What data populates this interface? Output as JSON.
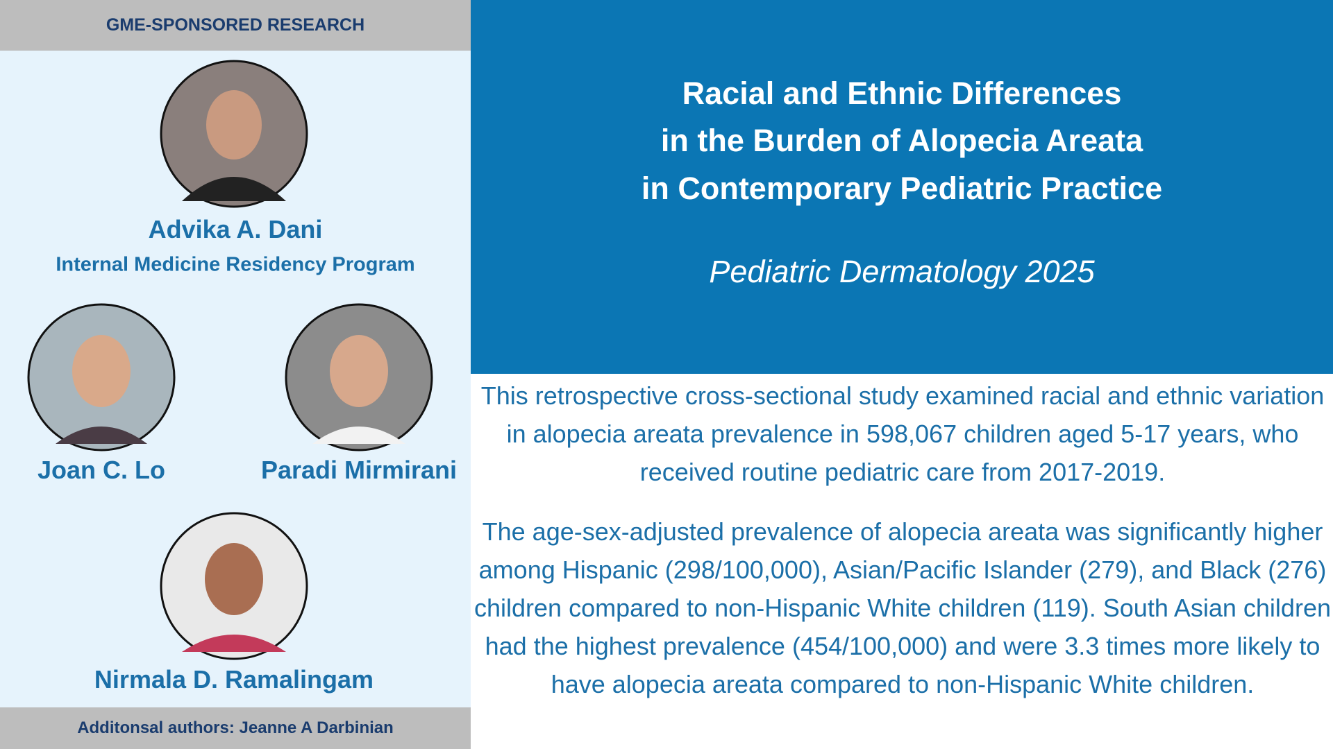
{
  "header": {
    "label": "GME-SPONSORED RESEARCH"
  },
  "authors": [
    {
      "name": "Advika A. Dani",
      "program": "Internal Medicine Residency Program"
    },
    {
      "name": "Joan C. Lo"
    },
    {
      "name": "Paradi Mirmirani"
    },
    {
      "name": "Nirmala D. Ramalingam"
    }
  ],
  "footer": {
    "text": "Additonsal authors: Jeanne A Darbinian"
  },
  "article": {
    "title_lines": [
      "Racial and Ethnic Differences",
      "in the Burden of Alopecia Areata",
      "in Contemporary Pediatric Practice"
    ],
    "journal": "Pediatric Dermatology 2025"
  },
  "summary": {
    "paragraphs": [
      "This retrospective cross-sectional study examined racial and ethnic variation in alopecia areata prevalence in 598,067 children aged 5-17 years, who received routine pediatric care from 2017-2019.",
      "The age-sex-adjusted prevalence of alopecia areata was significantly higher among Hispanic (298/100,000), Asian/Pacific Islander (279), and Black (276) children compared to non-Hispanic White children (119). South Asian children had the highest prevalence (454/100,000) and were 3.3 times more likely to have alopecia areata compared to non-Hispanic White children."
    ]
  }
}
